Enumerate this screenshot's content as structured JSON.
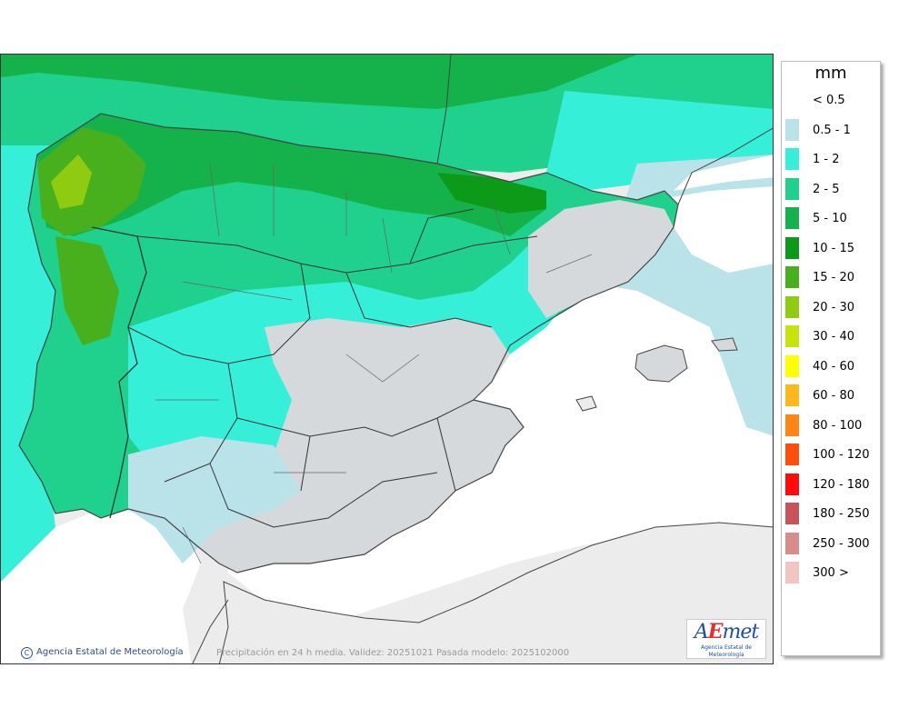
{
  "map": {
    "credit": "Agencia Estatal de Meteorología",
    "footer": "Precipitación en 24 h media. Validez: 20251021 Pasada modelo: 2025102000",
    "logo_text": "AEmet",
    "logo_sub": "Agencia Estatal de Meteorología"
  },
  "legend": {
    "unit": "mm",
    "items": [
      {
        "label": "< 0.5",
        "color": "#ffffff"
      },
      {
        "label": "0.5 - 1",
        "color": "#b9e3e8"
      },
      {
        "label": "1 - 2",
        "color": "#35efd9"
      },
      {
        "label": "2 - 5",
        "color": "#1fd18d"
      },
      {
        "label": "5 - 10",
        "color": "#15b24b"
      },
      {
        "label": "10 - 15",
        "color": "#0d9a18"
      },
      {
        "label": "15 - 20",
        "color": "#48b01c"
      },
      {
        "label": "20 - 30",
        "color": "#8fcc11"
      },
      {
        "label": "30 - 40",
        "color": "#c6e40c"
      },
      {
        "label": "40 - 60",
        "color": "#ffff00"
      },
      {
        "label": "60 - 80",
        "color": "#ffb81a"
      },
      {
        "label": "80 - 100",
        "color": "#ff8614"
      },
      {
        "label": "100 - 120",
        "color": "#ff4d0c"
      },
      {
        "label": "120 - 180",
        "color": "#ff0b0b"
      },
      {
        "label": "180 - 250",
        "color": "#c8545a"
      },
      {
        "label": "250 - 300",
        "color": "#d98c8c"
      },
      {
        "label": "300 >",
        "color": "#f2c5c5"
      }
    ]
  }
}
